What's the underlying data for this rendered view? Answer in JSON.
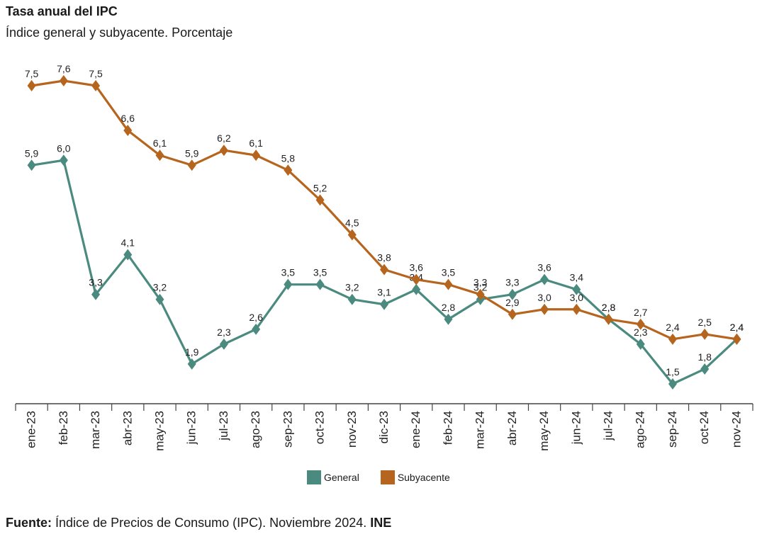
{
  "header": {
    "title": "Tasa anual del IPC",
    "subtitle": "Índice general y subyacente. Porcentaje"
  },
  "footer": {
    "label": "Fuente:",
    "text": "Índice de Precios de Consumo (IPC). Noviembre 2024.",
    "org": "INE"
  },
  "colors": {
    "general": "#4a8a7f",
    "subyacente": "#b5651d",
    "axis": "#444444"
  },
  "chart_data": {
    "type": "line",
    "title": "Tasa anual del IPC",
    "subtitle": "Índice general y subyacente. Porcentaje",
    "categories": [
      "ene-23",
      "feb-23",
      "mar-23",
      "abr-23",
      "may-23",
      "jun-23",
      "jul-23",
      "ago-23",
      "sep-23",
      "oct-23",
      "nov-23",
      "dic-23",
      "ene-24",
      "feb-24",
      "mar-24",
      "abr-24",
      "may-24",
      "jun-24",
      "jul-24",
      "ago-24",
      "sep-24",
      "oct-24",
      "nov-24"
    ],
    "series": [
      {
        "name": "General",
        "values": [
          5.9,
          6.0,
          3.3,
          4.1,
          3.2,
          1.9,
          2.3,
          2.6,
          3.5,
          3.5,
          3.2,
          3.1,
          3.4,
          2.8,
          3.2,
          3.3,
          3.6,
          3.4,
          2.8,
          2.3,
          1.5,
          1.8,
          2.4
        ]
      },
      {
        "name": "Subyacente",
        "values": [
          7.5,
          7.6,
          7.5,
          6.6,
          6.1,
          5.9,
          6.2,
          6.1,
          5.8,
          5.2,
          4.5,
          3.8,
          3.6,
          3.5,
          3.3,
          2.9,
          3.0,
          3.0,
          2.8,
          2.7,
          2.4,
          2.5,
          2.4
        ]
      }
    ],
    "labels": {
      "General": [
        "5,9",
        "6,0",
        "3,3",
        "4,1",
        "3,2",
        "1,9",
        "2,3",
        "2,6",
        "3,5",
        "3,5",
        "3,2",
        "3,1",
        "3,4",
        "2,8",
        "3,2",
        "3,3",
        "3,6",
        "3,4",
        "2,8",
        "2,3",
        "1,5",
        "1,8",
        "2,4"
      ],
      "Subyacente": [
        "7,5",
        "7,6",
        "7,5",
        "6,6",
        "6,1",
        "5,9",
        "6,2",
        "6,1",
        "5,8",
        "5,2",
        "4,5",
        "3,8",
        "3,6",
        "3,5",
        "3,3",
        "2,9",
        "3,0",
        "3,0",
        "2,8",
        "2,7",
        "2,4",
        "2,5",
        "2,4"
      ]
    },
    "ylim": [
      0.1,
      8.0
    ],
    "xlabel": "",
    "ylabel": "",
    "grid": false,
    "legend_position": "bottom-center"
  }
}
